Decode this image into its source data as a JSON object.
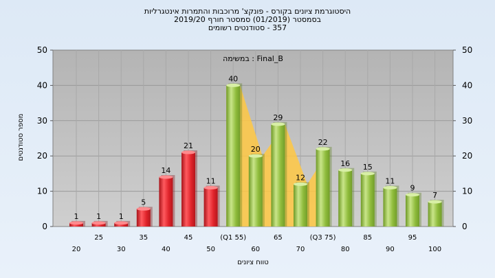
{
  "chart_data": {
    "type": "bar",
    "title_lines": [
      "היסטוגרמת ציונים בקורס - פונקצ' מרוכבות והתמרות אינטגרליות",
      "בסמסטר (01/2019) סמסטר חורף 2019/20",
      "357 - סטודנטים רשומים"
    ],
    "subtitle": "במשימה : Final_B",
    "xlabel": "טווח ציונים",
    "ylabel": "מספר סטודנטים",
    "ylim": [
      0,
      50
    ],
    "yticks": [
      0,
      10,
      20,
      30,
      40,
      50
    ],
    "categories": [
      "20",
      "25",
      "30",
      "35",
      "40",
      "45",
      "50",
      "(Q1 55)",
      "60",
      "65",
      "70",
      "(Q3 75)",
      "80",
      "85",
      "90",
      "95",
      "100"
    ],
    "values": [
      1,
      1,
      1,
      5,
      14,
      21,
      11,
      40,
      20,
      29,
      12,
      22,
      16,
      15,
      11,
      9,
      7
    ],
    "colors": {
      "below_pass": "#e0242b",
      "pass": "#8fbc3c",
      "interquartile_area": "#ffc843",
      "plot_background": "#c0c0c0"
    },
    "grid": true,
    "legend": "none"
  }
}
